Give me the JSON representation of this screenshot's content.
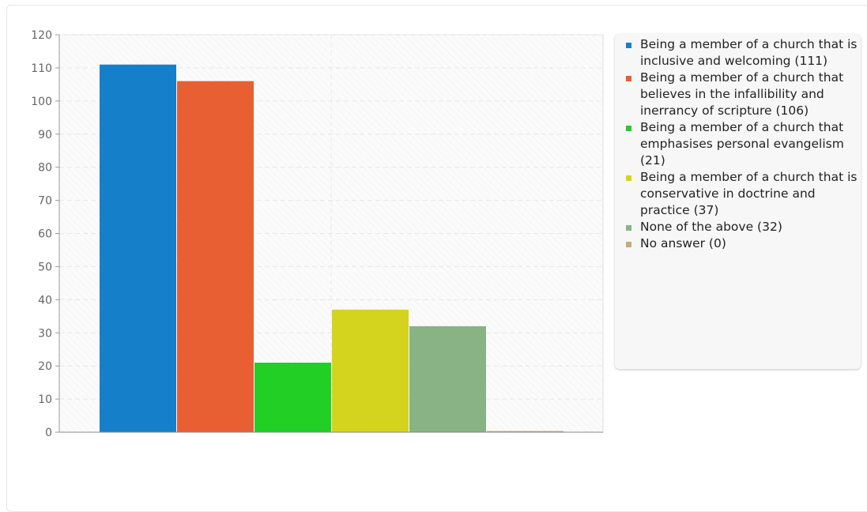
{
  "chart_data": {
    "type": "bar",
    "ylim": [
      0,
      120
    ],
    "yticks": [
      0,
      10,
      20,
      30,
      40,
      50,
      60,
      70,
      80,
      90,
      100,
      110,
      120
    ],
    "grid": true,
    "legend_position": "right",
    "series": [
      {
        "name": "Being a member of a church that is inclusive and welcoming (111)",
        "value": 111,
        "color": "#1580c9"
      },
      {
        "name": "Being a member of a church that believes in the infallibility and inerrancy of scripture (106)",
        "value": 106,
        "color": "#e75f33"
      },
      {
        "name": "Being a member of a church that emphasises personal evangelism (21)",
        "value": 21,
        "color": "#21cf25"
      },
      {
        "name": "Being a member of a church that is conservative in doctrine and practice (37)",
        "value": 37,
        "color": "#d4d41f"
      },
      {
        "name": "None of the above (32)",
        "value": 32,
        "color": "#89b384"
      },
      {
        "name": "No answer (0)",
        "value": 0,
        "color": "#c8a97e"
      }
    ]
  }
}
